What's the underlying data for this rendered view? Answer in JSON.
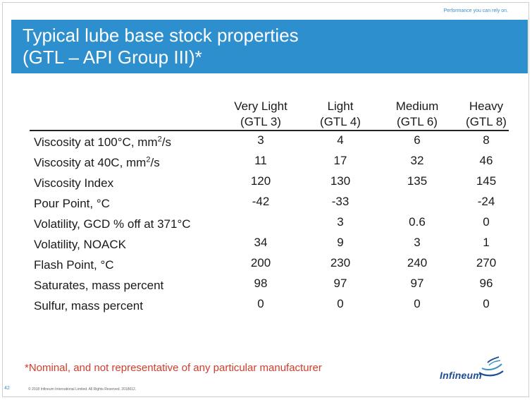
{
  "header": {
    "tagline": "Performance you can rely on.",
    "title_line1": "Typical lube base stock properties",
    "title_line2": "(GTL – API Group III)*"
  },
  "table": {
    "columns": [
      {
        "name": "Very Light",
        "grade": "(GTL 3)"
      },
      {
        "name": "Light",
        "grade": "(GTL 4)"
      },
      {
        "name": "Medium",
        "grade": "(GTL 6)"
      },
      {
        "name": "Heavy",
        "grade": "(GTL 8)"
      }
    ],
    "rows": [
      {
        "label": "Viscosity at 100°C, mm",
        "sup": "2",
        "suffix": "/s",
        "values": [
          "3",
          "4",
          "6",
          "8"
        ]
      },
      {
        "label": "Viscosity at 40C, mm",
        "sup": "2",
        "suffix": "/s",
        "values": [
          "11",
          "17",
          "32",
          "46"
        ]
      },
      {
        "label": "Viscosity Index",
        "values": [
          "120",
          "130",
          "135",
          "145"
        ]
      },
      {
        "label": "Pour Point, °C",
        "values": [
          "-42",
          "-33",
          "",
          "-24"
        ]
      },
      {
        "label": "Volatility, GCD % off at 371°C",
        "values": [
          "",
          "3",
          "0.6",
          "0"
        ]
      },
      {
        "label": "Volatility, NOACK",
        "values": [
          "34",
          "9",
          "3",
          "1"
        ]
      },
      {
        "label": "Flash Point, °C",
        "values": [
          "200",
          "230",
          "240",
          "270"
        ]
      },
      {
        "label": "Saturates, mass percent",
        "values": [
          "98",
          "97",
          "97",
          "96"
        ]
      },
      {
        "label": "Sulfur, mass percent",
        "values": [
          "0",
          "0",
          "0",
          "0"
        ]
      }
    ]
  },
  "footnote": "*Nominal, and not representative of any particular manufacturer",
  "footer": {
    "page_number": "42",
    "copyright": "© 2018 Infineum International Limited. All Rights Reserved. 2018012."
  },
  "logo": {
    "text": "Infineum"
  },
  "colors": {
    "banner": "#2d8fcd",
    "footnote": "#d23c2a",
    "logo": "#1e4f96"
  }
}
